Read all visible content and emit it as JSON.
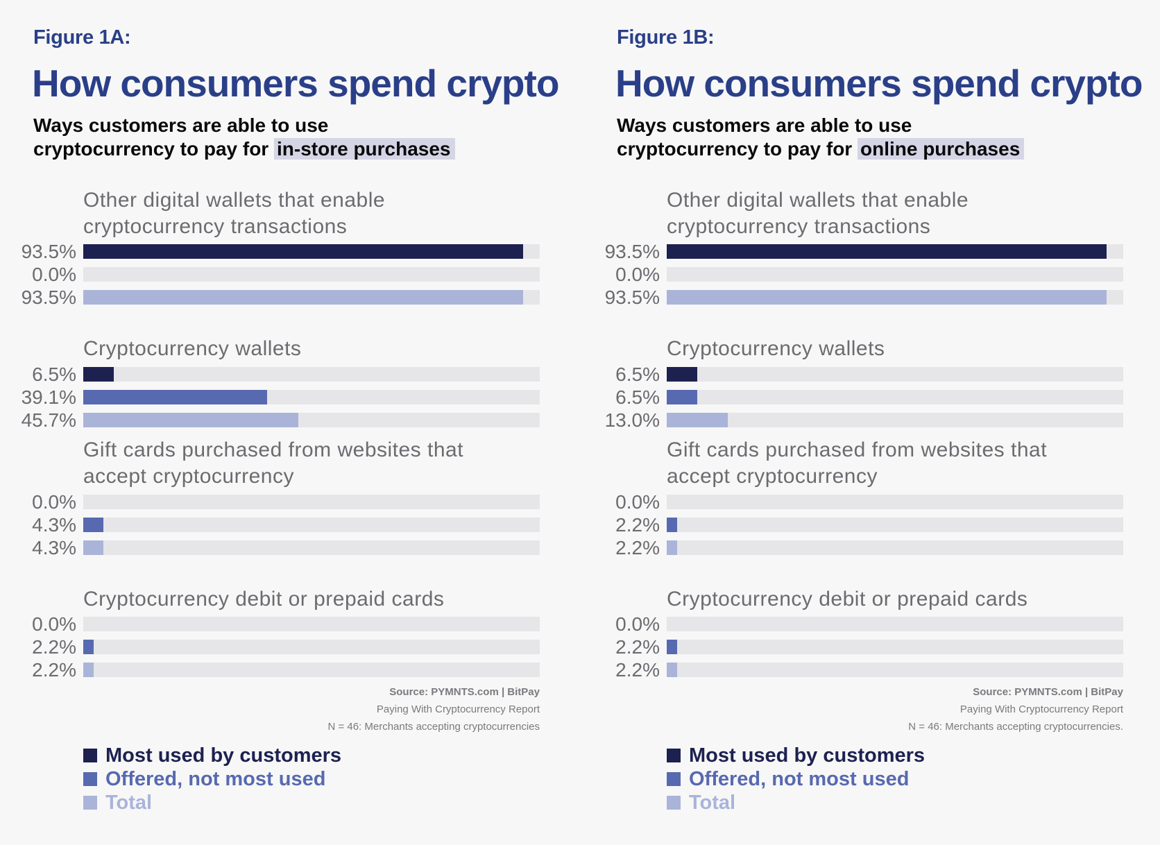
{
  "colors": {
    "most_used": "#1c2150",
    "offered": "#5769b0",
    "total": "#aab4d9",
    "track": "#e6e6e8",
    "title": "#2a3f88",
    "highlight": "#d4d5e5"
  },
  "panels": [
    {
      "figure_label": "Figure 1A:",
      "title": "How consumers spend crypto",
      "subtitle_line1": "Ways customers are able to use",
      "subtitle_line2_prefix": "cryptocurrency to pay for ",
      "subtitle_highlight": "in-store purchases",
      "source_line1": "Source: PYMNTS.com  |  BitPay",
      "source_line2": "Paying With Cryptocurrency Report",
      "source_line3": "N = 46: Merchants accepting cryptocurrencies"
    },
    {
      "figure_label": "Figure 1B:",
      "title": "How consumers spend crypto",
      "subtitle_line1": "Ways customers are able to use",
      "subtitle_line2_prefix": "cryptocurrency to pay for ",
      "subtitle_highlight": "online purchases",
      "source_line1": "Source: PYMNTS.com  |  BitPay",
      "source_line2": "Paying With Cryptocurrency Report",
      "source_line3": "N = 46: Merchants accepting cryptocurrencies."
    }
  ],
  "legend": [
    {
      "label": "Most used by customers",
      "key": "most_used"
    },
    {
      "label": "Offered, not most used",
      "key": "offered"
    },
    {
      "label": "Total",
      "key": "total"
    }
  ],
  "chart_data": [
    {
      "type": "bar",
      "orientation": "horizontal",
      "title": "How consumers spend crypto",
      "subtitle": "Ways customers are able to use cryptocurrency to pay for in-store purchases",
      "xlim": [
        0,
        100
      ],
      "categories": [
        "Other digital wallets that enable cryptocurrency transactions",
        "Cryptocurrency wallets",
        "Gift cards purchased from websites that accept cryptocurrency",
        "Cryptocurrency debit or prepaid cards"
      ],
      "category_lines": [
        [
          "Other digital wallets that enable",
          "cryptocurrency transactions"
        ],
        [
          "Cryptocurrency wallets"
        ],
        [
          "Gift cards purchased from websites that",
          "accept cryptocurrency"
        ],
        [
          "Cryptocurrency debit or prepaid cards"
        ]
      ],
      "series": [
        {
          "name": "Most used by customers",
          "key": "most_used",
          "values": [
            93.5,
            6.5,
            0.0,
            0.0
          ],
          "labels": [
            "93.5%",
            "6.5%",
            "0.0%",
            "0.0%"
          ]
        },
        {
          "name": "Offered, not most used",
          "key": "offered",
          "values": [
            0.0,
            39.1,
            4.3,
            2.2
          ],
          "labels": [
            "0.0%",
            "39.1%",
            "4.3%",
            "2.2%"
          ]
        },
        {
          "name": "Total",
          "key": "total",
          "values": [
            93.5,
            45.7,
            4.3,
            2.2
          ],
          "labels": [
            "93.5%",
            "45.7%",
            "4.3%",
            "2.2%"
          ]
        }
      ],
      "legend_position": "bottom-left",
      "grid": false
    },
    {
      "type": "bar",
      "orientation": "horizontal",
      "title": "How consumers spend crypto",
      "subtitle": "Ways customers are able to use cryptocurrency to pay for online purchases",
      "xlim": [
        0,
        100
      ],
      "categories": [
        "Other digital wallets that enable cryptocurrency transactions",
        "Cryptocurrency wallets",
        "Gift cards purchased from websites that accept cryptocurrency",
        "Cryptocurrency debit or prepaid cards"
      ],
      "category_lines": [
        [
          "Other digital wallets that enable",
          "cryptocurrency transactions"
        ],
        [
          "Cryptocurrency wallets"
        ],
        [
          "Gift cards purchased from websites that",
          "accept cryptocurrency"
        ],
        [
          "Cryptocurrency debit or prepaid cards"
        ]
      ],
      "series": [
        {
          "name": "Most used by customers",
          "key": "most_used",
          "values": [
            93.5,
            6.5,
            0.0,
            0.0
          ],
          "labels": [
            "93.5%",
            "6.5%",
            "0.0%",
            "0.0%"
          ]
        },
        {
          "name": "Offered, not most used",
          "key": "offered",
          "values": [
            0.0,
            6.5,
            2.2,
            2.2
          ],
          "labels": [
            "0.0%",
            "6.5%",
            "2.2%",
            "2.2%"
          ]
        },
        {
          "name": "Total",
          "key": "total",
          "values": [
            93.5,
            13.0,
            2.2,
            2.2
          ],
          "labels": [
            "93.5%",
            "13.0%",
            "2.2%",
            "2.2%"
          ]
        }
      ],
      "legend_position": "bottom-left",
      "grid": false
    }
  ]
}
